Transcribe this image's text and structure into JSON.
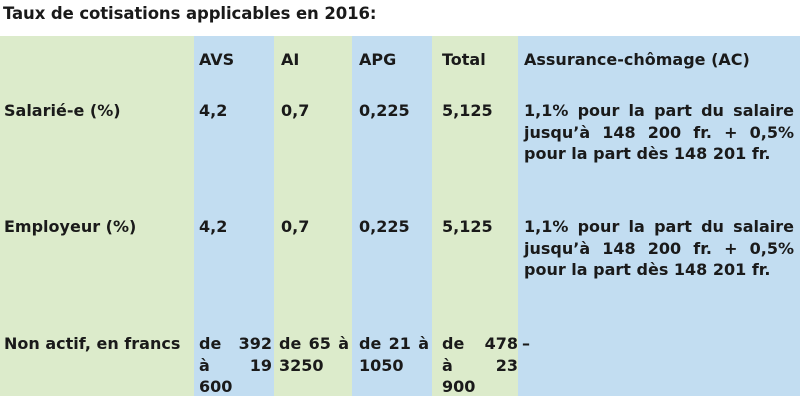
{
  "title": "Taux de cotisations applicables en 2016:",
  "colors": {
    "label_column": "#dcebcb",
    "avs_column": "#c2ddf1",
    "ai_column": "#dcebcb",
    "apg_column": "#c2ddf1",
    "total_column": "#dcebcb",
    "ac_column": "#c2ddf1"
  },
  "table": {
    "headers": [
      "",
      "AVS",
      "AI",
      "APG",
      "Total",
      "Assurance-chômage (AC)"
    ],
    "rows": [
      {
        "label": "Salarié-e (%)",
        "avs": "4,2",
        "ai": "0,7",
        "apg": "0,225",
        "total": "5,125",
        "ac": "1,1% pour la part du salaire jusqu’à 148 200 fr. + 0,5% pour la part dès 148 201 fr."
      },
      {
        "label": "Employeur (%)",
        "avs": "4,2",
        "ai": "0,7",
        "apg": "0,225",
        "total": "5,125",
        "ac": "1,1% pour la part du salaire jusqu’à 148 200 fr. + 0,5% pour la part dès 148 201 fr."
      },
      {
        "label": "Non actif, en francs",
        "avs": "de 392 à 19 600",
        "ai": "de 65 à 3250",
        "apg": "de 21 à 1050",
        "total": "de 478 à 23 900",
        "ac": "–"
      }
    ]
  }
}
